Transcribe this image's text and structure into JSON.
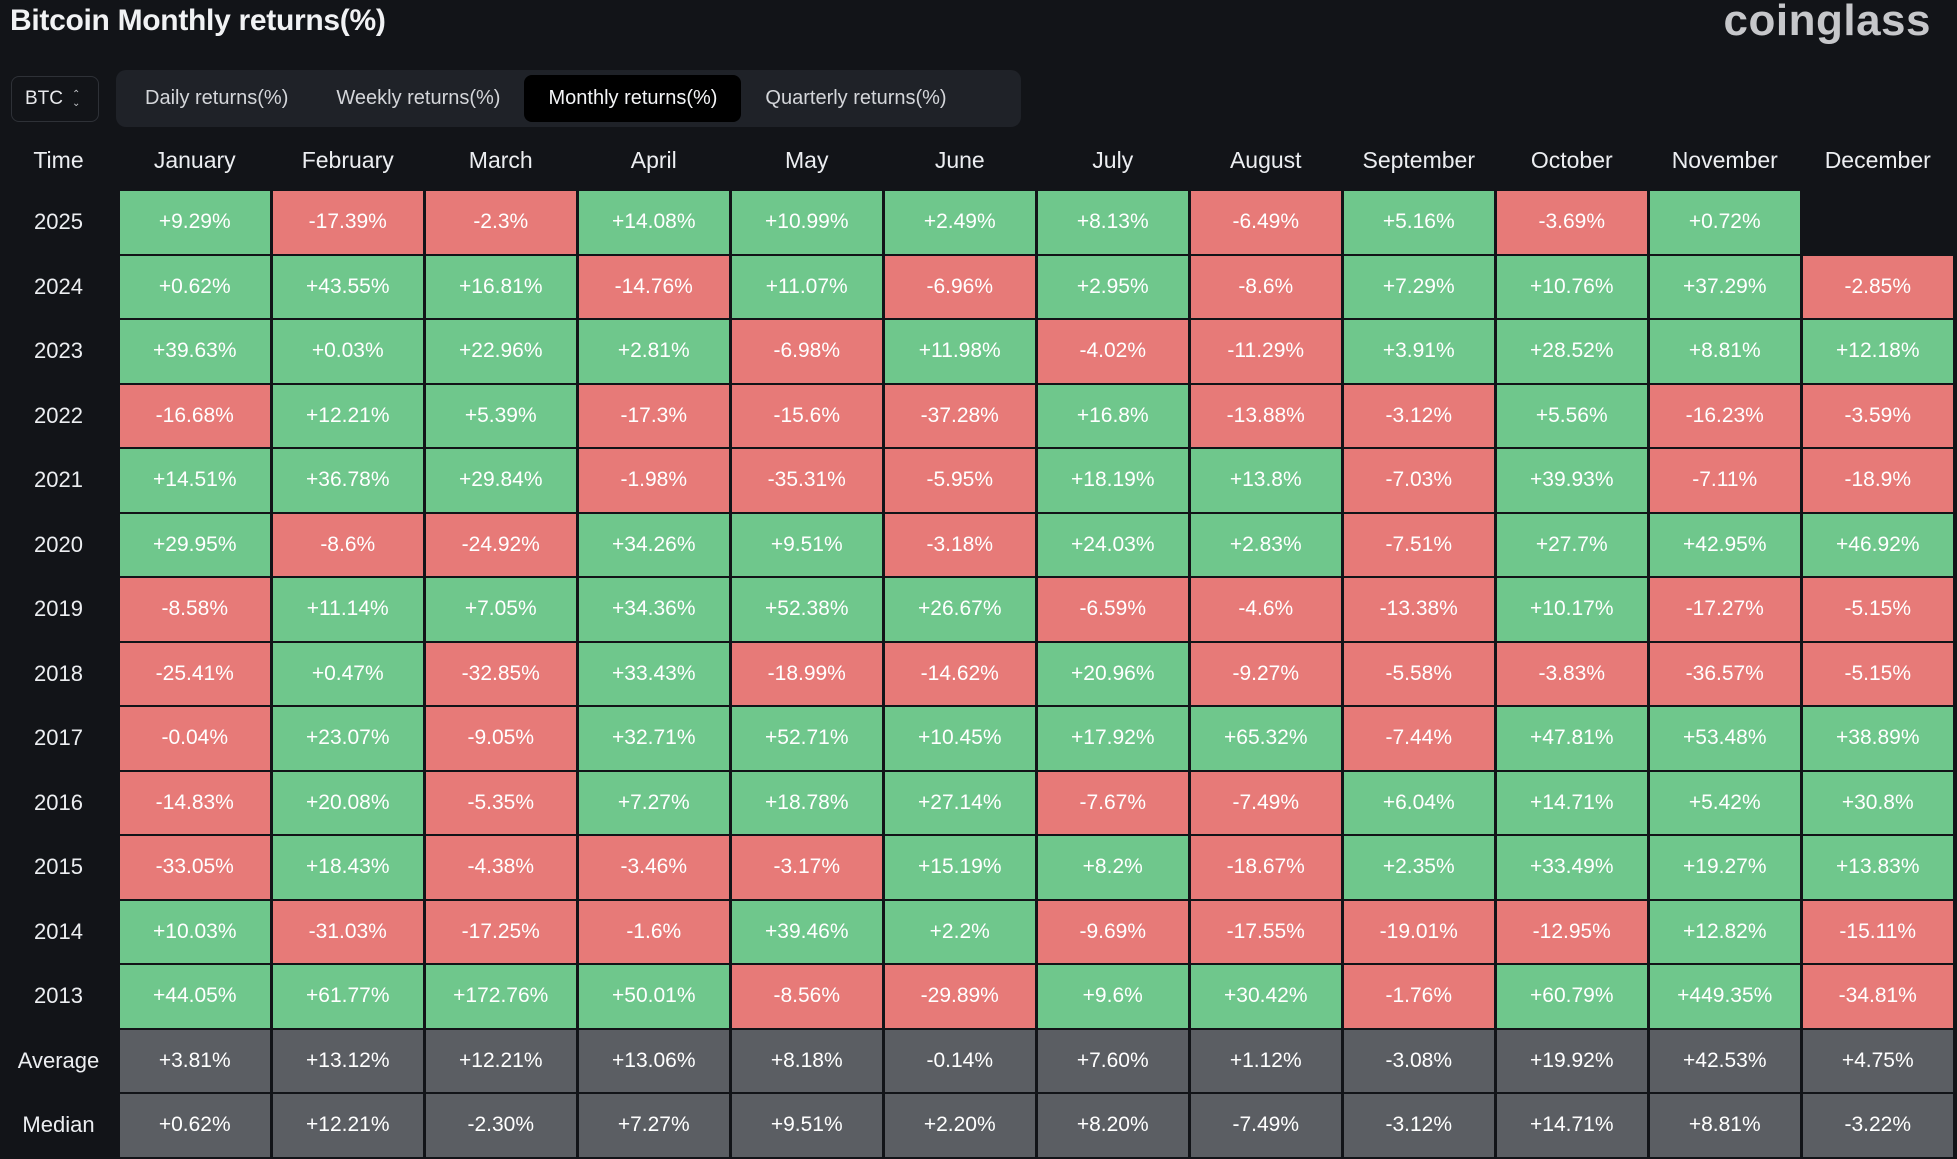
{
  "title": "Bitcoin Monthly returns(%)",
  "brand": "coinglass",
  "asset_select": {
    "value": "BTC",
    "icon": "chevron-up-down-icon"
  },
  "tabs": [
    {
      "label": "Daily returns(%)",
      "active": false
    },
    {
      "label": "Weekly returns(%)",
      "active": false
    },
    {
      "label": "Monthly returns(%)",
      "active": true
    },
    {
      "label": "Quarterly returns(%)",
      "active": false
    }
  ],
  "colors": {
    "positive": "#6fc78c",
    "negative": "#e77a78",
    "stat": "#5b5e63",
    "background": "#121418"
  },
  "table": {
    "time_header": "Time",
    "months": [
      "January",
      "February",
      "March",
      "April",
      "May",
      "June",
      "July",
      "August",
      "September",
      "October",
      "November",
      "December"
    ],
    "rows": [
      {
        "label": "2025",
        "values": [
          "+9.29%",
          "-17.39%",
          "-2.3%",
          "+14.08%",
          "+10.99%",
          "+2.49%",
          "+8.13%",
          "-6.49%",
          "+5.16%",
          "-3.69%",
          "+0.72%",
          ""
        ]
      },
      {
        "label": "2024",
        "values": [
          "+0.62%",
          "+43.55%",
          "+16.81%",
          "-14.76%",
          "+11.07%",
          "-6.96%",
          "+2.95%",
          "-8.6%",
          "+7.29%",
          "+10.76%",
          "+37.29%",
          "-2.85%"
        ]
      },
      {
        "label": "2023",
        "values": [
          "+39.63%",
          "+0.03%",
          "+22.96%",
          "+2.81%",
          "-6.98%",
          "+11.98%",
          "-4.02%",
          "-11.29%",
          "+3.91%",
          "+28.52%",
          "+8.81%",
          "+12.18%"
        ]
      },
      {
        "label": "2022",
        "values": [
          "-16.68%",
          "+12.21%",
          "+5.39%",
          "-17.3%",
          "-15.6%",
          "-37.28%",
          "+16.8%",
          "-13.88%",
          "-3.12%",
          "+5.56%",
          "-16.23%",
          "-3.59%"
        ]
      },
      {
        "label": "2021",
        "values": [
          "+14.51%",
          "+36.78%",
          "+29.84%",
          "-1.98%",
          "-35.31%",
          "-5.95%",
          "+18.19%",
          "+13.8%",
          "-7.03%",
          "+39.93%",
          "-7.11%",
          "-18.9%"
        ]
      },
      {
        "label": "2020",
        "values": [
          "+29.95%",
          "-8.6%",
          "-24.92%",
          "+34.26%",
          "+9.51%",
          "-3.18%",
          "+24.03%",
          "+2.83%",
          "-7.51%",
          "+27.7%",
          "+42.95%",
          "+46.92%"
        ]
      },
      {
        "label": "2019",
        "values": [
          "-8.58%",
          "+11.14%",
          "+7.05%",
          "+34.36%",
          "+52.38%",
          "+26.67%",
          "-6.59%",
          "-4.6%",
          "-13.38%",
          "+10.17%",
          "-17.27%",
          "-5.15%"
        ]
      },
      {
        "label": "2018",
        "values": [
          "-25.41%",
          "+0.47%",
          "-32.85%",
          "+33.43%",
          "-18.99%",
          "-14.62%",
          "+20.96%",
          "-9.27%",
          "-5.58%",
          "-3.83%",
          "-36.57%",
          "-5.15%"
        ]
      },
      {
        "label": "2017",
        "values": [
          "-0.04%",
          "+23.07%",
          "-9.05%",
          "+32.71%",
          "+52.71%",
          "+10.45%",
          "+17.92%",
          "+65.32%",
          "-7.44%",
          "+47.81%",
          "+53.48%",
          "+38.89%"
        ]
      },
      {
        "label": "2016",
        "values": [
          "-14.83%",
          "+20.08%",
          "-5.35%",
          "+7.27%",
          "+18.78%",
          "+27.14%",
          "-7.67%",
          "-7.49%",
          "+6.04%",
          "+14.71%",
          "+5.42%",
          "+30.8%"
        ]
      },
      {
        "label": "2015",
        "values": [
          "-33.05%",
          "+18.43%",
          "-4.38%",
          "-3.46%",
          "-3.17%",
          "+15.19%",
          "+8.2%",
          "-18.67%",
          "+2.35%",
          "+33.49%",
          "+19.27%",
          "+13.83%"
        ]
      },
      {
        "label": "2014",
        "values": [
          "+10.03%",
          "-31.03%",
          "-17.25%",
          "-1.6%",
          "+39.46%",
          "+2.2%",
          "-9.69%",
          "-17.55%",
          "-19.01%",
          "-12.95%",
          "+12.82%",
          "-15.11%"
        ]
      },
      {
        "label": "2013",
        "values": [
          "+44.05%",
          "+61.77%",
          "+172.76%",
          "+50.01%",
          "-8.56%",
          "-29.89%",
          "+9.6%",
          "+30.42%",
          "-1.76%",
          "+60.79%",
          "+449.35%",
          "-34.81%"
        ]
      }
    ],
    "stats": [
      {
        "label": "Average",
        "values": [
          "+3.81%",
          "+13.12%",
          "+12.21%",
          "+13.06%",
          "+8.18%",
          "-0.14%",
          "+7.60%",
          "+1.12%",
          "-3.08%",
          "+19.92%",
          "+42.53%",
          "+4.75%"
        ]
      },
      {
        "label": "Median",
        "values": [
          "+0.62%",
          "+12.21%",
          "-2.30%",
          "+7.27%",
          "+9.51%",
          "+2.20%",
          "+8.20%",
          "-7.49%",
          "-3.12%",
          "+14.71%",
          "+8.81%",
          "-3.22%"
        ]
      }
    ]
  }
}
